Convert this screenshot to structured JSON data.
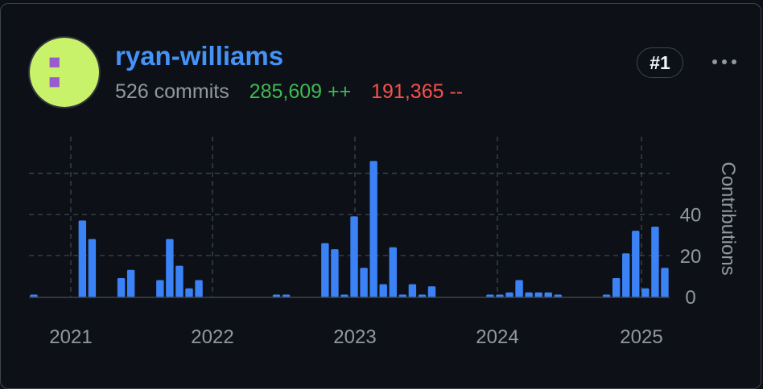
{
  "user": {
    "username": "ryan-williams",
    "commits": "526 commits",
    "additions": "285,609 ++",
    "deletions": "191,365 --",
    "rank": "#1"
  },
  "colors": {
    "bar": "#3b82f6",
    "additions": "#3fb950",
    "deletions": "#f85149",
    "link": "#4493f8"
  },
  "chart_data": {
    "type": "bar",
    "ylabel": "Contributions",
    "yticks": [
      "0",
      "20",
      "40"
    ],
    "xticks": [
      "2021",
      "2022",
      "2023",
      "2024",
      "2025"
    ],
    "ylim": [
      0,
      70
    ],
    "grid": true,
    "values": [
      1,
      0,
      0,
      0,
      0,
      37,
      28,
      0,
      0,
      9,
      13,
      0,
      0,
      8,
      28,
      15,
      4,
      8,
      0,
      0,
      0,
      0,
      0,
      0,
      0,
      1,
      1,
      0,
      0,
      0,
      26,
      23,
      1,
      39,
      14,
      66,
      6,
      24,
      1,
      6,
      1,
      5,
      0,
      0,
      0,
      0,
      0,
      1,
      1,
      2,
      8,
      2,
      2,
      2,
      1,
      0,
      0,
      0,
      0,
      1,
      9,
      21,
      32,
      4,
      34,
      14
    ]
  }
}
